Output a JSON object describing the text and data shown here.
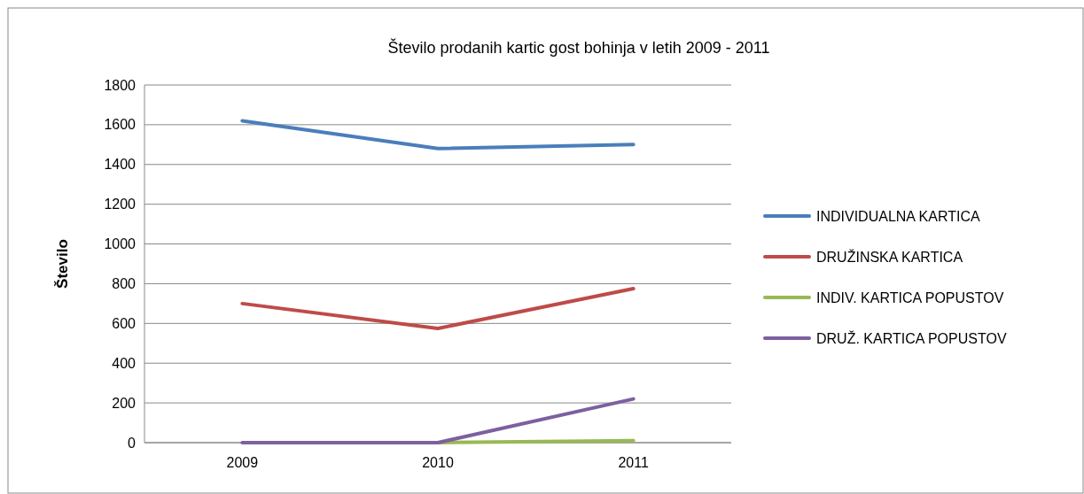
{
  "chart_data": {
    "type": "line",
    "title": "Število prodanih kartic gost bohinja v letih 2009 - 2011",
    "ylabel": "Število",
    "categories": [
      "2009",
      "2010",
      "2011"
    ],
    "series": [
      {
        "name": "INDIVIDUALNA KARTICA",
        "color": "#4a7ebb",
        "values": [
          1620,
          1480,
          1500
        ]
      },
      {
        "name": "DRUŽINSKA KARTICA",
        "color": "#be4b48",
        "values": [
          700,
          575,
          775
        ]
      },
      {
        "name": "INDIV. KARTICA POPUSTOV",
        "color": "#98b954",
        "values": [
          null,
          0,
          10
        ]
      },
      {
        "name": "DRUŽ. KARTICA POPUSTOV",
        "color": "#7d60a0",
        "values": [
          0,
          0,
          220
        ]
      }
    ],
    "ylim": [
      0,
      1800
    ],
    "yticks": [
      0,
      200,
      400,
      600,
      800,
      1000,
      1200,
      1400,
      1600,
      1800
    ],
    "grid": "y",
    "legend": "right",
    "marker": "none",
    "line_style": "solid"
  }
}
